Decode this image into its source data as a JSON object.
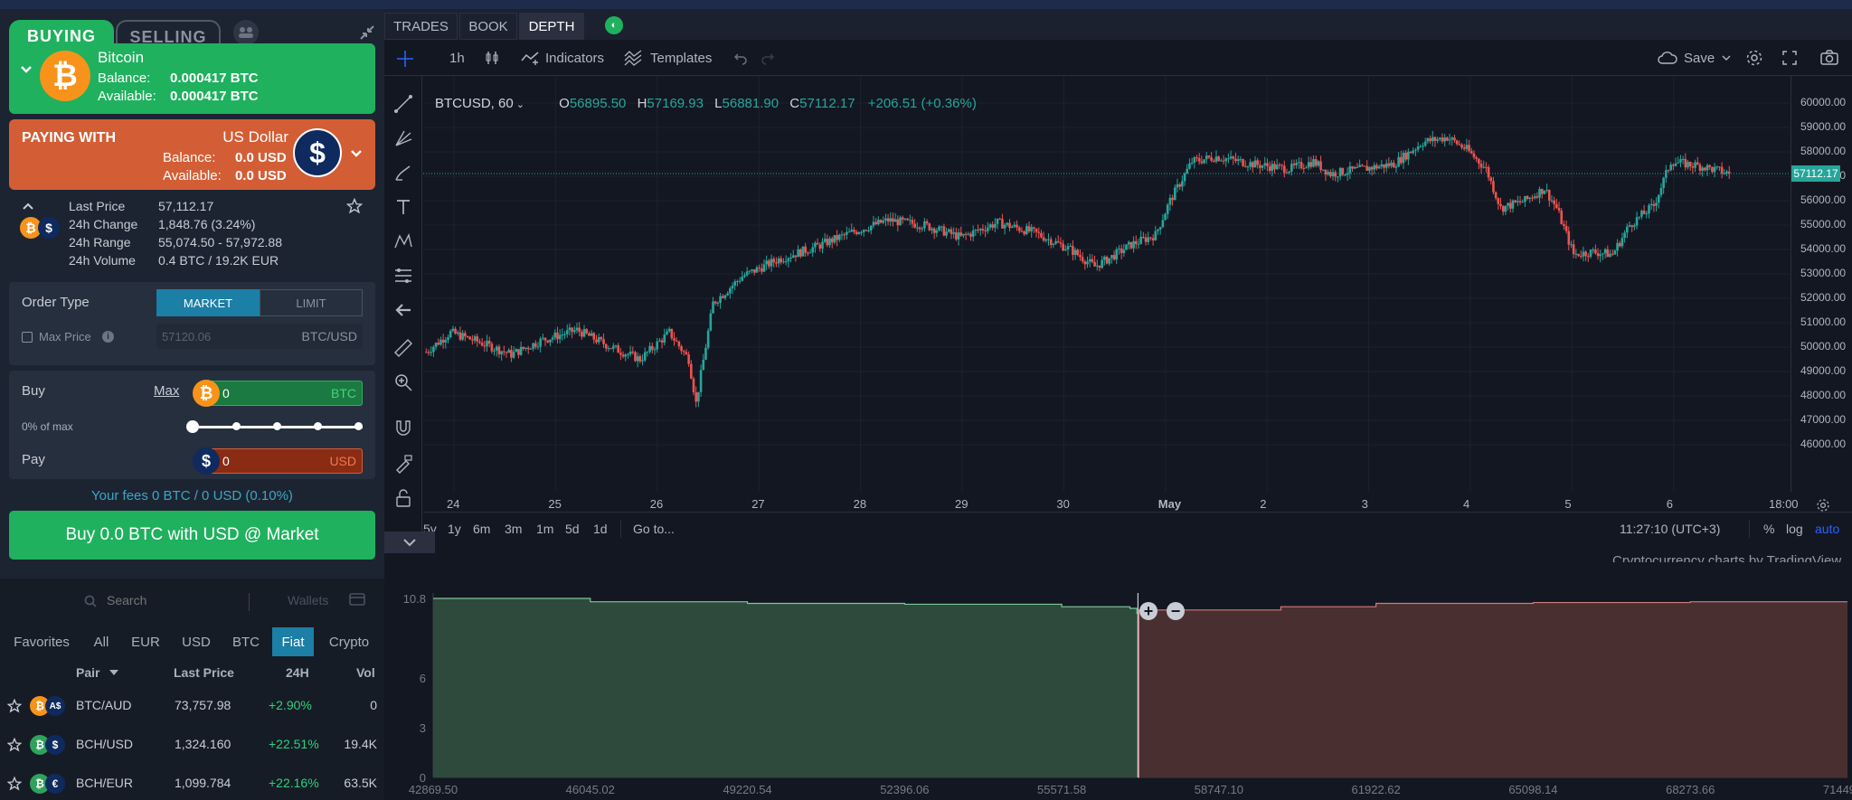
{
  "left": {
    "tabs": {
      "buying": "BUYING",
      "selling": "SELLING"
    },
    "buying": {
      "coin_name": "Bitcoin",
      "balance_label": "Balance:",
      "balance_value": "0.000417 BTC",
      "available_label": "Available:",
      "available_value": "0.000417 BTC",
      "icon": "bitcoin-icon"
    },
    "paying": {
      "title": "PAYING WITH",
      "coin_name": "US Dollar",
      "balance_label": "Balance:",
      "balance_value": "0.0 USD",
      "available_label": "Available:",
      "available_value": "0.0 USD",
      "icon": "dollar-icon"
    },
    "stats": [
      {
        "label": "Last Price",
        "value": "57,112.17"
      },
      {
        "label": "24h Change",
        "value": "1,848.76 (3.24%)"
      },
      {
        "label": "24h Range",
        "value": "55,074.50 - 57,972.88"
      },
      {
        "label": "24h Volume",
        "value": "0.4 BTC / 19.2K EUR"
      }
    ],
    "order": {
      "type_label": "Order Type",
      "market": "MARKET",
      "limit": "LIMIT",
      "max_price_label": "Max Price",
      "max_price_placeholder": "57120.06",
      "max_price_unit": "BTC/USD"
    },
    "trade": {
      "buy_label": "Buy",
      "max_link": "Max",
      "buy_value": "0",
      "buy_unit": "BTC",
      "pct_label": "0% of max",
      "slider_fraction": 0,
      "pay_label": "Pay",
      "pay_value": "0",
      "pay_unit": "USD"
    },
    "fees": "Your fees 0 BTC / 0 USD (0.10%)",
    "buy_button": "Buy 0.0 BTC with USD @ Market",
    "market": {
      "search_placeholder": "Search",
      "wallets_label": "Wallets",
      "tabs": [
        "Favorites",
        "All",
        "EUR",
        "USD",
        "BTC",
        "Fiat",
        "Crypto"
      ],
      "active_tab": "Fiat",
      "headers": {
        "pair": "Pair",
        "last": "Last Price",
        "change": "24H",
        "vol": "Vol"
      },
      "rows": [
        {
          "pair": "BTC/AUD",
          "last": "73,757.98",
          "change": "+2.90%",
          "vol": "0",
          "base": "B",
          "quote": "A$"
        },
        {
          "pair": "BCH/USD",
          "last": "1,324.160",
          "change": "+22.51%",
          "vol": "19.4K",
          "base": "B",
          "quote": "$"
        },
        {
          "pair": "BCH/EUR",
          "last": "1,099.784",
          "change": "+22.16%",
          "vol": "63.5K",
          "base": "B",
          "quote": "€"
        }
      ]
    }
  },
  "right": {
    "tabs": [
      "TRADES",
      "BOOK",
      "DEPTH"
    ],
    "active_tab": "DEPTH",
    "toolbar": {
      "interval": "1h",
      "indicators": "Indicators",
      "templates": "Templates",
      "save": "Save"
    },
    "legend": {
      "symbol": "BTCUSD, 60",
      "o_label": "O",
      "o": "56895.50",
      "h_label": "H",
      "h": "57169.93",
      "l_label": "L",
      "l": "56881.90",
      "c_label": "C",
      "c": "57112.17",
      "change": "+206.51 (+0.36%)"
    },
    "last_price_tag": "57112.17",
    "price_labels": [
      "60000.00",
      "59000.00",
      "58000.00",
      "57000.00",
      "56000.00",
      "55000.00",
      "54000.00",
      "53000.00",
      "52000.00",
      "51000.00",
      "50000.00",
      "49000.00",
      "48000.00",
      "47000.00",
      "46000.00"
    ],
    "date_labels": [
      "24",
      "25",
      "26",
      "27",
      "28",
      "29",
      "30",
      "May",
      "2",
      "3",
      "4",
      "5",
      "6",
      "18:00"
    ],
    "ranges": [
      "5y",
      "1y",
      "6m",
      "3m",
      "1m",
      "5d",
      "1d"
    ],
    "goto": "Go to...",
    "clock": "11:27:10 (UTC+3)",
    "scale": {
      "pct": "%",
      "log": "log",
      "auto": "auto"
    },
    "attribution": "Cryptocurrency charts by TradingView",
    "colors": {
      "up": "#26a69a",
      "down": "#ef5350",
      "bid": "#2fa25b",
      "ask": "#d35e35"
    }
  },
  "chart_data": [
    {
      "type": "candlestick",
      "x_labels": [
        "24",
        "25",
        "26",
        "27",
        "28",
        "29",
        "30",
        "May",
        "2",
        "3",
        "4",
        "5",
        "6"
      ],
      "ylim": [
        46000,
        60000
      ],
      "last": 57112.17,
      "anchors": [
        [
          0,
          49800
        ],
        [
          10,
          50600
        ],
        [
          22,
          50200
        ],
        [
          35,
          49700
        ],
        [
          48,
          50300
        ],
        [
          62,
          50700
        ],
        [
          76,
          50000
        ],
        [
          88,
          49500
        ],
        [
          100,
          50600
        ],
        [
          108,
          49500
        ],
        [
          111,
          47700
        ],
        [
          118,
          51800
        ],
        [
          130,
          52900
        ],
        [
          145,
          53600
        ],
        [
          160,
          54100
        ],
        [
          175,
          54700
        ],
        [
          190,
          55200
        ],
        [
          205,
          55000
        ],
        [
          220,
          54500
        ],
        [
          235,
          55100
        ],
        [
          250,
          54700
        ],
        [
          265,
          54000
        ],
        [
          275,
          53300
        ],
        [
          282,
          53700
        ],
        [
          290,
          54200
        ],
        [
          300,
          54600
        ],
        [
          306,
          56000
        ],
        [
          315,
          57600
        ],
        [
          325,
          57800
        ],
        [
          340,
          57500
        ],
        [
          355,
          57300
        ],
        [
          365,
          57600
        ],
        [
          372,
          57100
        ],
        [
          385,
          57300
        ],
        [
          398,
          57500
        ],
        [
          410,
          58400
        ],
        [
          420,
          58600
        ],
        [
          428,
          58100
        ],
        [
          436,
          57300
        ],
        [
          442,
          55700
        ],
        [
          452,
          56000
        ],
        [
          460,
          56500
        ],
        [
          465,
          55700
        ],
        [
          472,
          53800
        ],
        [
          480,
          53900
        ],
        [
          488,
          53800
        ],
        [
          495,
          55000
        ],
        [
          505,
          55800
        ],
        [
          512,
          57600
        ],
        [
          525,
          57400
        ],
        [
          536,
          57112
        ]
      ]
    },
    {
      "type": "area",
      "title": "",
      "x_labels": [
        "42869.50",
        "46045.02",
        "49220.54",
        "52396.06",
        "55571.58",
        "58747.10",
        "61922.62",
        "65098.14",
        "68273.66",
        "71449.17"
      ],
      "y_labels": [
        "10.8",
        "6",
        "3",
        "0"
      ],
      "ylim": [
        0,
        10.8
      ],
      "bid_steps": [
        [
          42869.5,
          10.8
        ],
        [
          46045,
          10.6
        ],
        [
          49220,
          10.5
        ],
        [
          52396,
          10.45
        ],
        [
          55571,
          10.3
        ],
        [
          56950,
          10.2
        ],
        [
          57090,
          9.9
        ],
        [
          57112,
          0
        ]
      ],
      "ask_steps": [
        [
          57112,
          0
        ],
        [
          57130,
          10.1
        ],
        [
          58747,
          10.1
        ],
        [
          60000,
          10.3
        ],
        [
          61922,
          10.5
        ],
        [
          65098,
          10.55
        ],
        [
          68273,
          10.6
        ],
        [
          71449,
          10.6
        ]
      ]
    }
  ]
}
